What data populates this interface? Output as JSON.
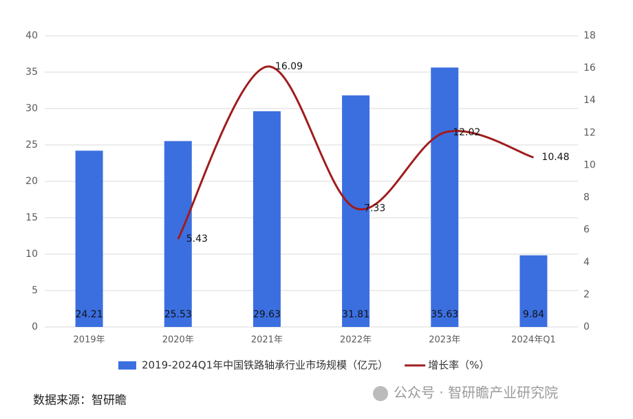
{
  "chart_data": {
    "type": "bar",
    "categories": [
      "2019年",
      "2020年",
      "2021年",
      "2022年",
      "2023年",
      "2024年Q1"
    ],
    "series": [
      {
        "name": "2019-2024Q1年中国铁路轴承行业市场规模（亿元）",
        "type": "bar",
        "color": "#3b6fe0",
        "values": [
          24.21,
          25.53,
          29.63,
          31.81,
          35.63,
          9.84
        ]
      },
      {
        "name": "增长率（%）",
        "type": "line",
        "axis": "y2",
        "color": "#a01c1c",
        "values": [
          null,
          5.43,
          16.09,
          7.33,
          12.02,
          10.48
        ]
      }
    ],
    "ylim": [
      0,
      40
    ],
    "yticks": [
      0,
      5,
      10,
      15,
      20,
      25,
      30,
      35,
      40
    ],
    "y2lim": [
      0,
      18
    ],
    "y2ticks": [
      0,
      2,
      4,
      6,
      8,
      10,
      12,
      14,
      16,
      18
    ],
    "grid": true,
    "legend": "bottom",
    "source": "数据来源：智研瞻"
  },
  "watermark": "公众号 · 智研瞻产业研究院"
}
